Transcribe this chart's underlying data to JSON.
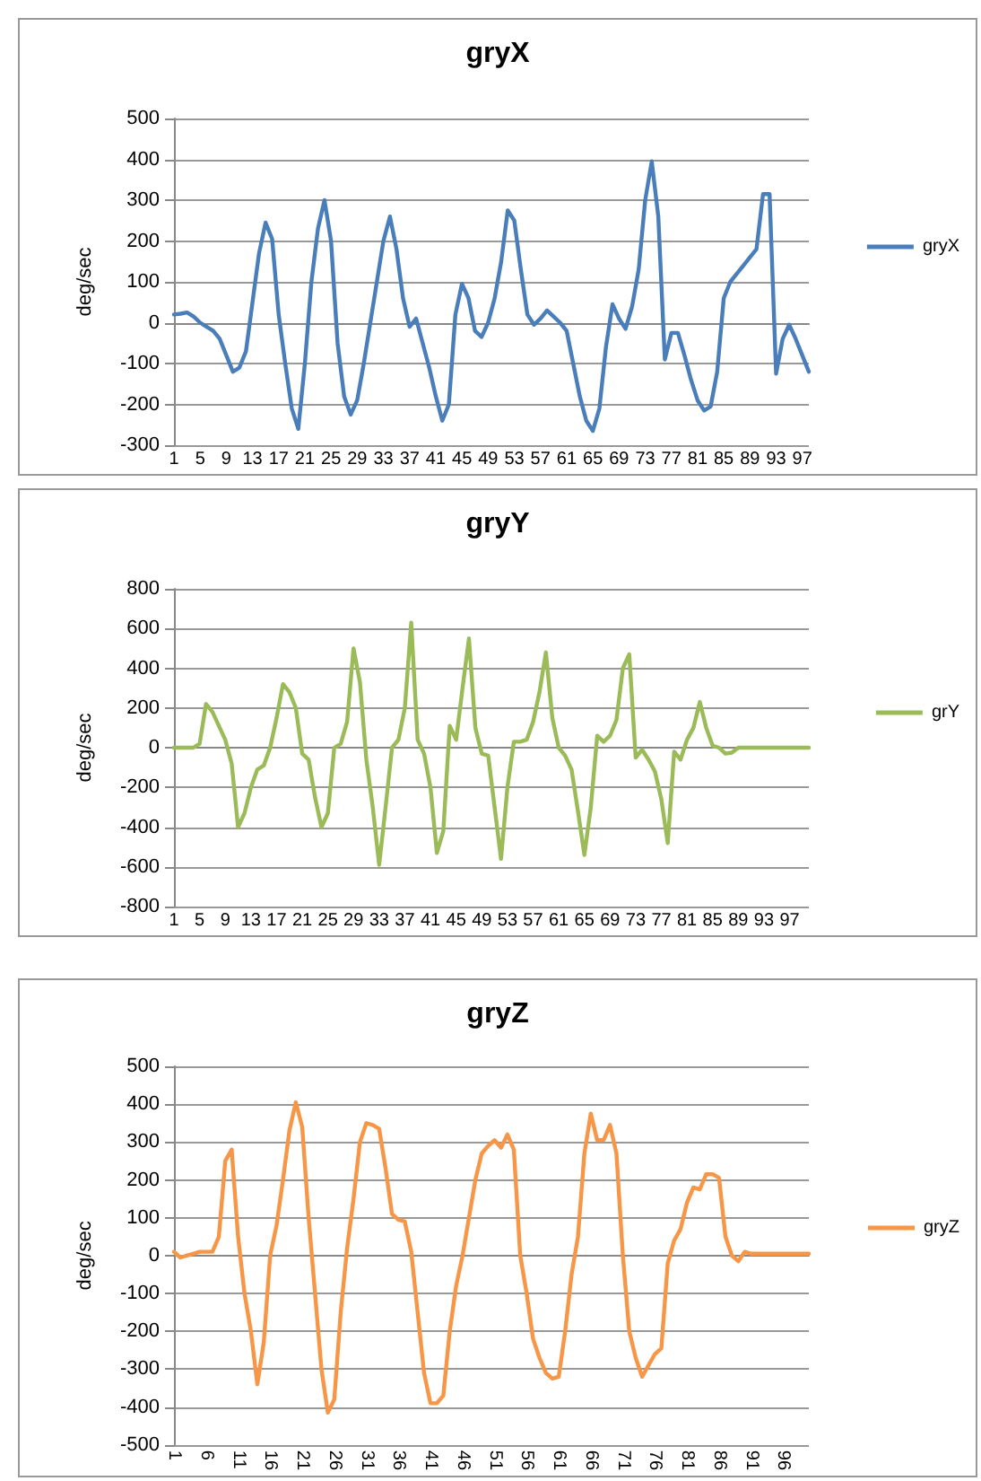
{
  "chart_data": [
    {
      "type": "line",
      "title": "gryX",
      "ylabel": "deg/sec",
      "ylim": [
        -300,
        500
      ],
      "yticks": [
        -300,
        -200,
        -100,
        0,
        100,
        200,
        300,
        400,
        500
      ],
      "grid": "y",
      "legend": "right",
      "marker": "none",
      "categories": [
        "1",
        null,
        null,
        null,
        "5",
        null,
        null,
        null,
        "9",
        null,
        null,
        null,
        "13",
        null,
        null,
        null,
        "17",
        null,
        null,
        null,
        "21",
        null,
        null,
        null,
        "25",
        null,
        null,
        null,
        "29",
        null,
        null,
        null,
        "33",
        null,
        null,
        null,
        "37",
        null,
        null,
        null,
        "41",
        null,
        null,
        null,
        "45",
        null,
        null,
        null,
        "49",
        null,
        null,
        null,
        "53",
        null,
        null,
        null,
        "57",
        null,
        null,
        null,
        "61",
        null,
        null,
        null,
        "65",
        null,
        null,
        null,
        "69",
        null,
        null,
        null,
        "73",
        null,
        null,
        null,
        "77",
        null,
        null,
        null,
        "81",
        null,
        null,
        null,
        "85",
        null,
        null,
        null,
        "89",
        null,
        null,
        null,
        "93",
        null,
        null,
        null,
        "97",
        null
      ],
      "series": [
        {
          "name": "gryX",
          "color": "#4a7ebb",
          "values": [
            20,
            22,
            25,
            15,
            0,
            -10,
            -20,
            -40,
            -80,
            -120,
            -110,
            -70,
            50,
            170,
            245,
            205,
            20,
            -100,
            -210,
            -260,
            -100,
            100,
            230,
            300,
            200,
            -50,
            -180,
            -225,
            -190,
            -100,
            0,
            100,
            200,
            260,
            180,
            60,
            -10,
            10,
            -50,
            -110,
            -180,
            -240,
            -200,
            20,
            95,
            60,
            -20,
            -35,
            0,
            60,
            150,
            275,
            250,
            130,
            20,
            -5,
            10,
            30,
            15,
            0,
            -20,
            -100,
            -180,
            -240,
            -265,
            -210,
            -60,
            45,
            10,
            -15,
            40,
            130,
            300,
            395,
            260,
            -90,
            -25,
            -25,
            -80,
            -140,
            -190,
            -215,
            -205,
            -120,
            60,
            100,
            120,
            140,
            160,
            180,
            315,
            315,
            -125,
            -40,
            -5,
            -40,
            -80,
            -120
          ]
        }
      ]
    },
    {
      "type": "line",
      "title": "gryY",
      "ylabel": "deg/sec",
      "ylim": [
        -800,
        800
      ],
      "yticks": [
        -800,
        -600,
        -400,
        -200,
        0,
        200,
        400,
        600,
        800
      ],
      "grid": "y",
      "legend": "right",
      "marker": "none",
      "categories": [
        "1",
        null,
        null,
        null,
        "5",
        null,
        null,
        null,
        "9",
        null,
        null,
        null,
        "13",
        null,
        null,
        null,
        "17",
        null,
        null,
        null,
        "21",
        null,
        null,
        null,
        "25",
        null,
        null,
        null,
        "29",
        null,
        null,
        null,
        "33",
        null,
        null,
        null,
        "37",
        null,
        null,
        null,
        "41",
        null,
        null,
        null,
        "45",
        null,
        null,
        null,
        "49",
        null,
        null,
        null,
        "53",
        null,
        null,
        null,
        "57",
        null,
        null,
        null,
        "61",
        null,
        null,
        null,
        "65",
        null,
        null,
        null,
        "69",
        null,
        null,
        null,
        "73",
        null,
        null,
        null,
        "77",
        null,
        null,
        null,
        "81",
        null,
        null,
        null,
        "85",
        null,
        null,
        null,
        "89",
        null,
        null,
        null,
        "93",
        null,
        null,
        null,
        "97",
        null,
        null,
        null
      ],
      "series": [
        {
          "name": "grY",
          "color": "#9bbb59",
          "values": [
            0,
            0,
            0,
            0,
            20,
            220,
            180,
            110,
            40,
            -80,
            -400,
            -330,
            -200,
            -110,
            -90,
            0,
            150,
            320,
            280,
            200,
            -30,
            -60,
            -250,
            -400,
            -330,
            0,
            20,
            130,
            500,
            330,
            -60,
            -300,
            -590,
            -300,
            0,
            40,
            200,
            630,
            40,
            -30,
            -200,
            -530,
            -420,
            110,
            40,
            300,
            550,
            100,
            -30,
            -40,
            -300,
            -560,
            -200,
            30,
            30,
            40,
            130,
            280,
            480,
            150,
            0,
            -40,
            -110,
            -320,
            -540,
            -300,
            60,
            30,
            60,
            140,
            400,
            470,
            -50,
            -10,
            -60,
            -120,
            -260,
            -480,
            -20,
            -60,
            40,
            100,
            230,
            100,
            10,
            0,
            -30,
            -25,
            0,
            0,
            0,
            0,
            0,
            0,
            0,
            0,
            0,
            0,
            0,
            0
          ]
        }
      ]
    },
    {
      "type": "line",
      "title": "gryZ",
      "ylabel": "deg/sec",
      "ylim": [
        -500,
        500
      ],
      "yticks": [
        -500,
        -400,
        -300,
        -200,
        -100,
        0,
        100,
        200,
        300,
        400,
        500
      ],
      "grid": "y",
      "legend": "right",
      "marker": "none",
      "categories": [
        "1",
        null,
        null,
        null,
        null,
        "6",
        null,
        null,
        null,
        null,
        "11",
        null,
        null,
        null,
        null,
        "16",
        null,
        null,
        null,
        null,
        "21",
        null,
        null,
        null,
        null,
        "26",
        null,
        null,
        null,
        null,
        "31",
        null,
        null,
        null,
        null,
        "36",
        null,
        null,
        null,
        null,
        "41",
        null,
        null,
        null,
        null,
        "46",
        null,
        null,
        null,
        null,
        "51",
        null,
        null,
        null,
        null,
        "56",
        null,
        null,
        null,
        null,
        "61",
        null,
        null,
        null,
        null,
        "66",
        null,
        null,
        null,
        null,
        "71",
        null,
        null,
        null,
        null,
        "76",
        null,
        null,
        null,
        null,
        "81",
        null,
        null,
        null,
        null,
        "86",
        null,
        null,
        null,
        null,
        "91",
        null,
        null,
        null,
        null,
        "96",
        null,
        null,
        null,
        null
      ],
      "series": [
        {
          "name": "gryZ",
          "color": "#f79646",
          "values": [
            10,
            -5,
            0,
            5,
            10,
            10,
            10,
            50,
            250,
            280,
            50,
            -100,
            -200,
            -340,
            -230,
            0,
            80,
            200,
            330,
            405,
            340,
            100,
            -100,
            -300,
            -415,
            -380,
            -150,
            20,
            150,
            300,
            350,
            345,
            335,
            230,
            110,
            95,
            90,
            10,
            -150,
            -310,
            -390,
            -390,
            -370,
            -200,
            -80,
            0,
            100,
            200,
            270,
            290,
            305,
            285,
            320,
            280,
            0,
            -100,
            -220,
            -270,
            -310,
            -325,
            -320,
            -200,
            -50,
            50,
            270,
            375,
            305,
            305,
            345,
            270,
            0,
            -200,
            -270,
            -320,
            -290,
            -260,
            -245,
            -20,
            40,
            70,
            140,
            180,
            175,
            215,
            215,
            205,
            50,
            0,
            -15,
            10,
            5,
            5,
            5,
            5,
            5,
            5,
            5,
            5,
            5,
            5
          ]
        }
      ]
    }
  ]
}
